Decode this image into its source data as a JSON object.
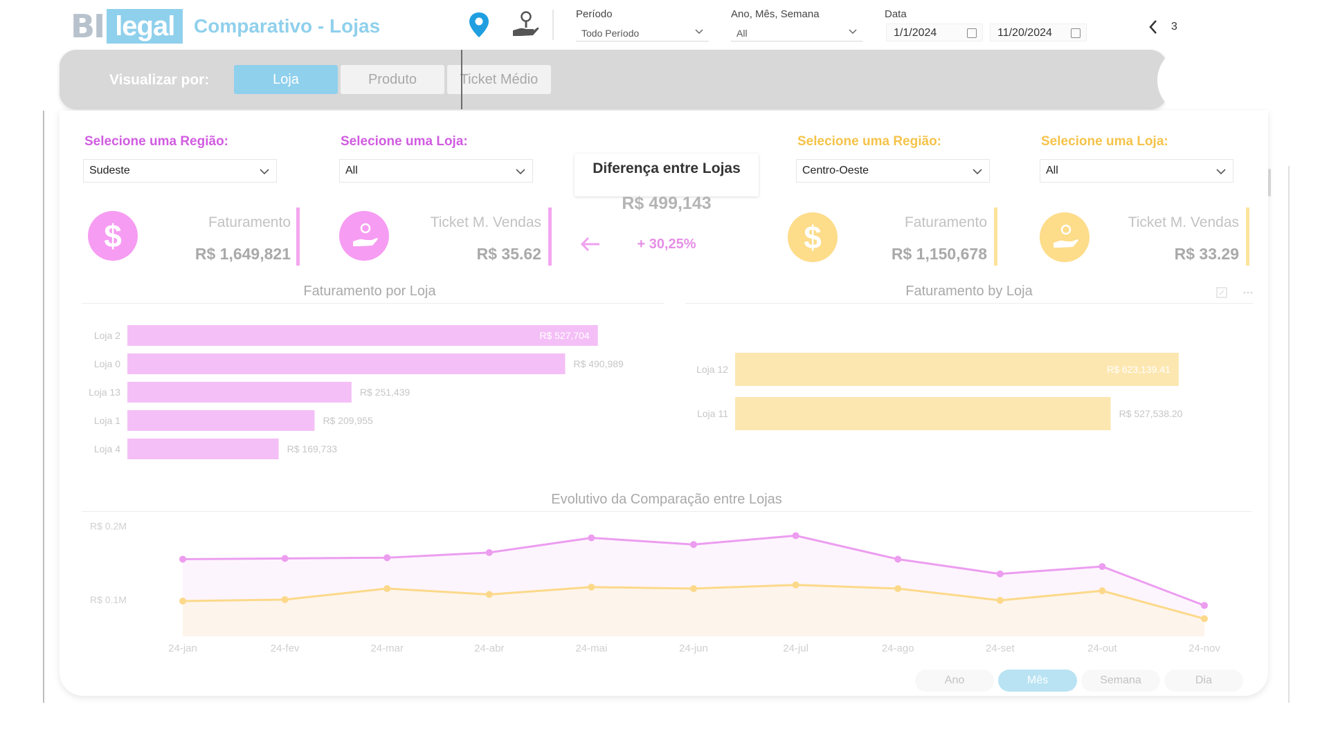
{
  "header": {
    "logo_bi": "BI",
    "logo_legal": "legal",
    "title": "Comparativo - Lojas",
    "filters": {
      "periodo_label": "Período",
      "periodo_value": "Todo Período",
      "ams_label": "Ano, Mês, Semana",
      "ams_value": "All",
      "data_label": "Data",
      "date_start": "1/1/2024",
      "date_end": "11/20/2024"
    },
    "nav_count": "3"
  },
  "toolbar": {
    "label": "Visualizar por:",
    "buttons": [
      "Loja",
      "Produto",
      "Ticket Médio"
    ],
    "active": "Loja"
  },
  "left": {
    "region_label": "Selecione uma Região:",
    "region_value": "Sudeste",
    "store_label": "Selecione uma Loja:",
    "store_value": "All",
    "faturamento_title": "Faturamento",
    "faturamento_value": "R$ 1,649,821",
    "ticket_title": "Ticket M. Vendas",
    "ticket_value": "R$ 35.62"
  },
  "right": {
    "region_label": "Selecione uma Região:",
    "region_value": "Centro-Oeste",
    "store_label": "Selecione uma Loja:",
    "store_value": "All",
    "faturamento_title": "Faturamento",
    "faturamento_value": "R$ 1,150,678",
    "ticket_title": "Ticket M. Vendas",
    "ticket_value": "R$ 33.29"
  },
  "diff": {
    "title": "Diferença entre Lojas",
    "value": "R$ 499,143",
    "pct": "+ 30,25%"
  },
  "colors": {
    "pink": "#f4bff7",
    "pink_line": "#ec9df0",
    "yellow": "#fde7b1",
    "yellow_line": "#fcd98a",
    "accent": "#8fd0ec"
  },
  "chart_data": [
    {
      "type": "bar",
      "orientation": "horizontal",
      "title": "Faturamento por Loja",
      "categories": [
        "Loja 2",
        "Loja 0",
        "Loja 13",
        "Loja 1",
        "Loja 4"
      ],
      "values": [
        527704,
        490989,
        251439,
        209955,
        169733
      ],
      "labels": [
        "R$ 527,704",
        "R$ 490,989",
        "R$ 251,439",
        "R$ 209,955",
        "R$ 169,733"
      ],
      "xlim": [
        0,
        590000
      ]
    },
    {
      "type": "bar",
      "orientation": "horizontal",
      "title": "Faturamento by Loja",
      "categories": [
        "Loja 12",
        "Loja 11"
      ],
      "values": [
        623139.41,
        527538.2
      ],
      "labels": [
        "R$ 623,139.41",
        "R$ 527,538.20"
      ],
      "xlim": [
        0,
        700000
      ]
    },
    {
      "type": "line",
      "title": "Evolutivo da Comparação entre Lojas",
      "x": [
        "24-jan",
        "24-fev",
        "24-mar",
        "24-abr",
        "24-mai",
        "24-jun",
        "24-jul",
        "24-ago",
        "24-set",
        "24-out",
        "24-nov"
      ],
      "yticks": [
        {
          "value": 200000,
          "label": "R$ 0.2M"
        },
        {
          "value": 100000,
          "label": "R$ 0.1M"
        }
      ],
      "ylim": [
        50000,
        210000
      ],
      "series": [
        {
          "values": [
            155000,
            156000,
            157000,
            164000,
            184000,
            175000,
            187000,
            155000,
            135000,
            145000,
            92000
          ]
        },
        {
          "values": [
            98000,
            100000,
            115000,
            107000,
            117000,
            115000,
            120000,
            115000,
            99000,
            112000,
            74000
          ]
        }
      ]
    }
  ],
  "granularity": {
    "buttons": [
      "Ano",
      "Mês",
      "Semana",
      "Dia"
    ],
    "active": "Mês"
  }
}
